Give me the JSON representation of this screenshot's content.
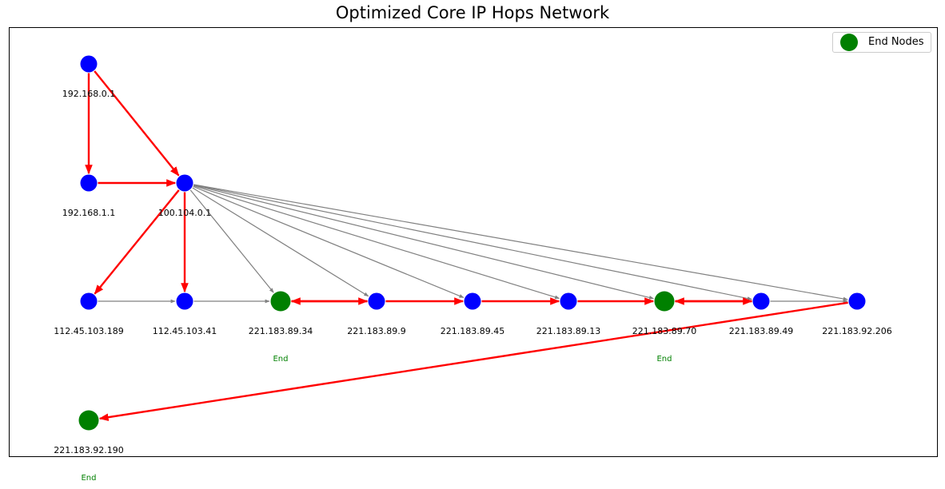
{
  "title": "Optimized Core IP Hops Network",
  "legend": {
    "label": "End Nodes",
    "color": "#008000"
  },
  "colors": {
    "node": "#0000ff",
    "end_node": "#008000",
    "highlight_edge": "#ff0000",
    "edge": "#808080"
  },
  "end_label": "End",
  "nodes": [
    {
      "id": "192.168.0.1",
      "label": "192.168.0.1",
      "end": false
    },
    {
      "id": "192.168.1.1",
      "label": "192.168.1.1",
      "end": false
    },
    {
      "id": "100.104.0.1",
      "label": "100.104.0.1",
      "end": false
    },
    {
      "id": "112.45.103.189",
      "label": "112.45.103.189",
      "end": false
    },
    {
      "id": "112.45.103.41",
      "label": "112.45.103.41",
      "end": false
    },
    {
      "id": "221.183.89.34",
      "label": "221.183.89.34",
      "end": true
    },
    {
      "id": "221.183.89.9",
      "label": "221.183.89.9",
      "end": false
    },
    {
      "id": "221.183.89.45",
      "label": "221.183.89.45",
      "end": false
    },
    {
      "id": "221.183.89.13",
      "label": "221.183.89.13",
      "end": false
    },
    {
      "id": "221.183.89.70",
      "label": "221.183.89.70",
      "end": true
    },
    {
      "id": "221.183.89.49",
      "label": "221.183.89.49",
      "end": false
    },
    {
      "id": "221.183.92.206",
      "label": "221.183.92.206",
      "end": false
    },
    {
      "id": "221.183.92.190",
      "label": "221.183.92.190",
      "end": true
    }
  ],
  "edges": [
    {
      "from": "100.104.0.1",
      "to": "221.183.89.34",
      "highlight": false
    },
    {
      "from": "100.104.0.1",
      "to": "221.183.89.9",
      "highlight": false
    },
    {
      "from": "100.104.0.1",
      "to": "221.183.89.45",
      "highlight": false
    },
    {
      "from": "100.104.0.1",
      "to": "221.183.89.13",
      "highlight": false
    },
    {
      "from": "100.104.0.1",
      "to": "221.183.89.70",
      "highlight": false
    },
    {
      "from": "100.104.0.1",
      "to": "221.183.89.49",
      "highlight": false
    },
    {
      "from": "100.104.0.1",
      "to": "221.183.92.206",
      "highlight": false
    },
    {
      "from": "112.45.103.189",
      "to": "112.45.103.41",
      "highlight": false
    },
    {
      "from": "112.45.103.41",
      "to": "221.183.89.34",
      "highlight": false
    },
    {
      "from": "221.183.89.49",
      "to": "221.183.92.206",
      "highlight": false
    },
    {
      "from": "192.168.0.1",
      "to": "192.168.1.1",
      "highlight": true
    },
    {
      "from": "192.168.0.1",
      "to": "100.104.0.1",
      "highlight": true
    },
    {
      "from": "192.168.1.1",
      "to": "100.104.0.1",
      "highlight": true
    },
    {
      "from": "100.104.0.1",
      "to": "112.45.103.189",
      "highlight": true
    },
    {
      "from": "100.104.0.1",
      "to": "112.45.103.41",
      "highlight": true
    },
    {
      "from": "221.183.89.9",
      "to": "221.183.89.34",
      "highlight": true
    },
    {
      "from": "221.183.89.34",
      "to": "221.183.89.9",
      "highlight": true
    },
    {
      "from": "221.183.89.9",
      "to": "221.183.89.45",
      "highlight": true
    },
    {
      "from": "221.183.89.45",
      "to": "221.183.89.13",
      "highlight": true
    },
    {
      "from": "221.183.89.13",
      "to": "221.183.89.70",
      "highlight": true
    },
    {
      "from": "221.183.89.49",
      "to": "221.183.89.70",
      "highlight": true
    },
    {
      "from": "221.183.89.70",
      "to": "221.183.89.49",
      "highlight": true
    },
    {
      "from": "221.183.92.206",
      "to": "221.183.92.190",
      "highlight": true
    }
  ]
}
